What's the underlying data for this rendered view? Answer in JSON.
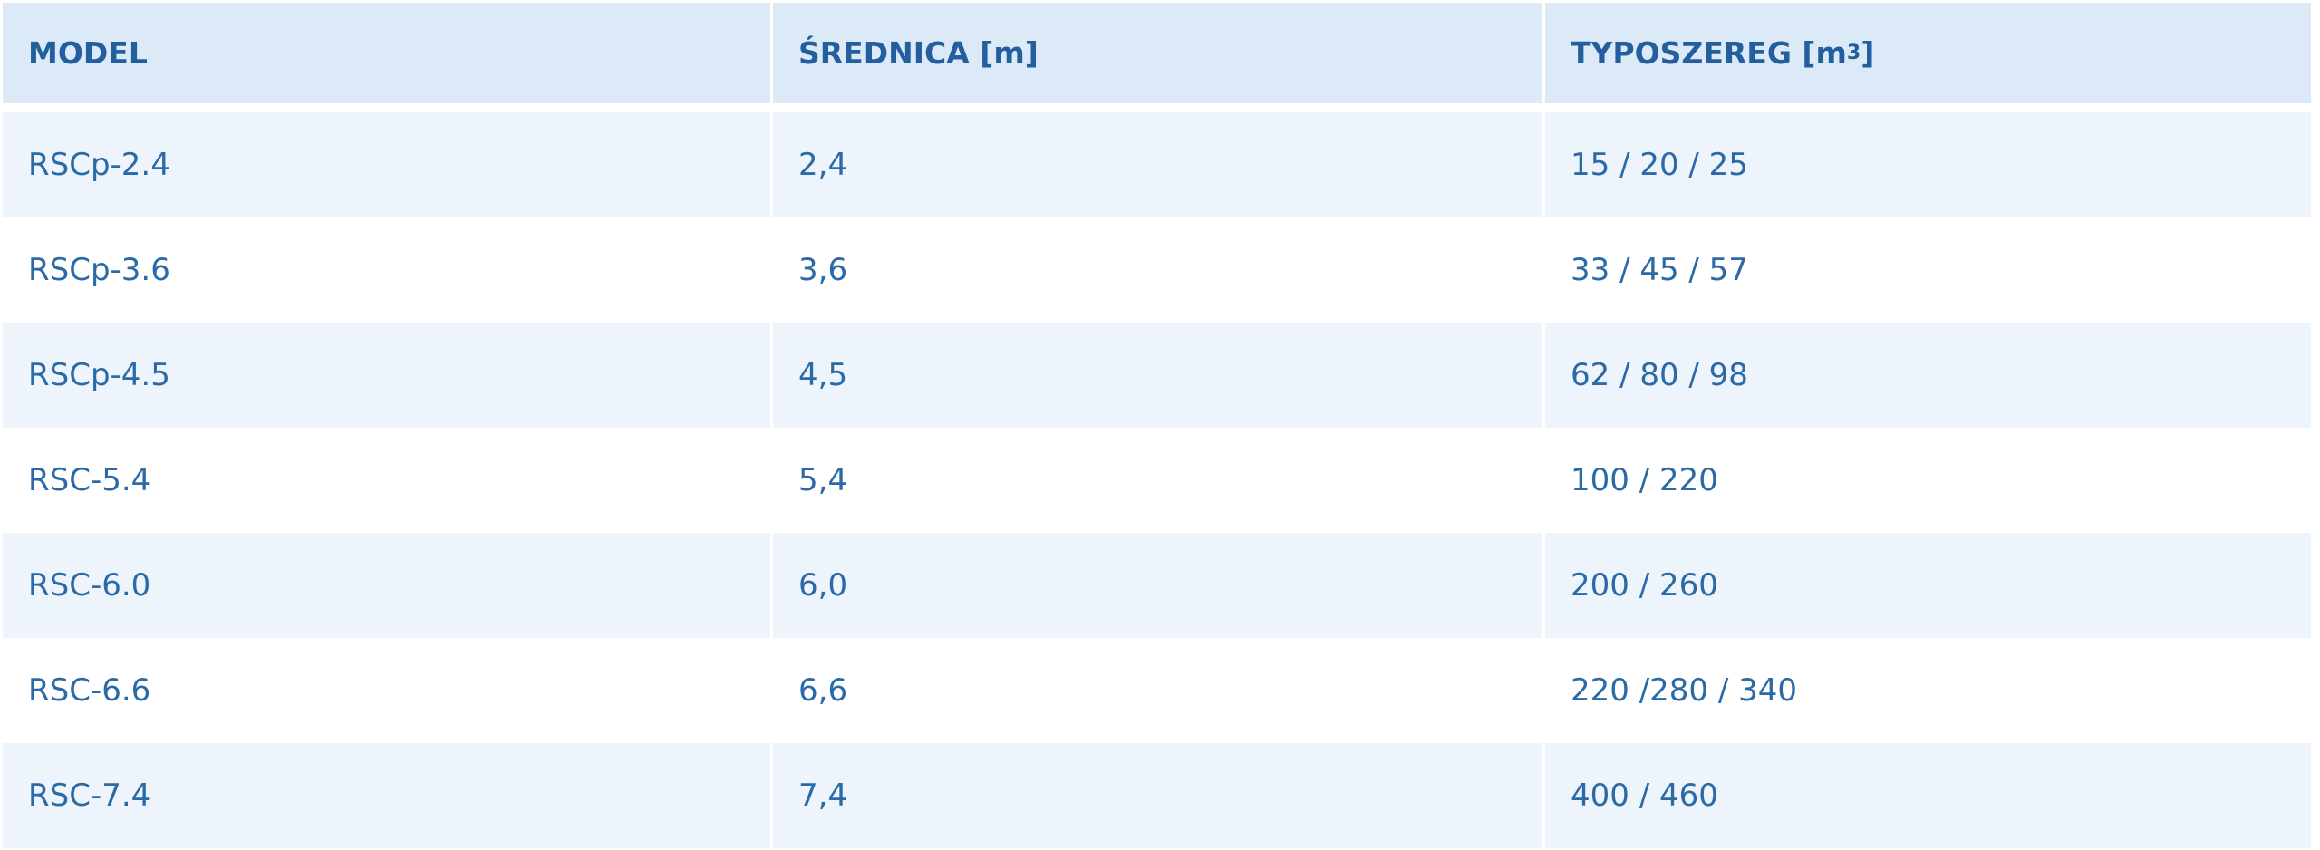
{
  "table": {
    "headers": {
      "model": "MODEL",
      "diameter": "ŚREDNICA [m]",
      "series_prefix": "TYPOSZEREG [m",
      "series_sup": "3",
      "series_suffix": "]"
    },
    "rows": [
      {
        "model": "RSCp-2.4",
        "diameter": "2,4",
        "series": "15 / 20 / 25"
      },
      {
        "model": "RSCp-3.6",
        "diameter": "3,6",
        "series": "33 / 45 / 57"
      },
      {
        "model": "RSCp-4.5",
        "diameter": "4,5",
        "series": "62 / 80 / 98"
      },
      {
        "model": "RSC-5.4",
        "diameter": "5,4",
        "series": "100 / 220"
      },
      {
        "model": "RSC-6.0",
        "diameter": "6,0",
        "series": "200 / 260"
      },
      {
        "model": "RSC-6.6",
        "diameter": "6,6",
        "series": "220 /280 / 340"
      },
      {
        "model": "RSC-7.4",
        "diameter": "7,4",
        "series": "400 / 460"
      }
    ]
  }
}
